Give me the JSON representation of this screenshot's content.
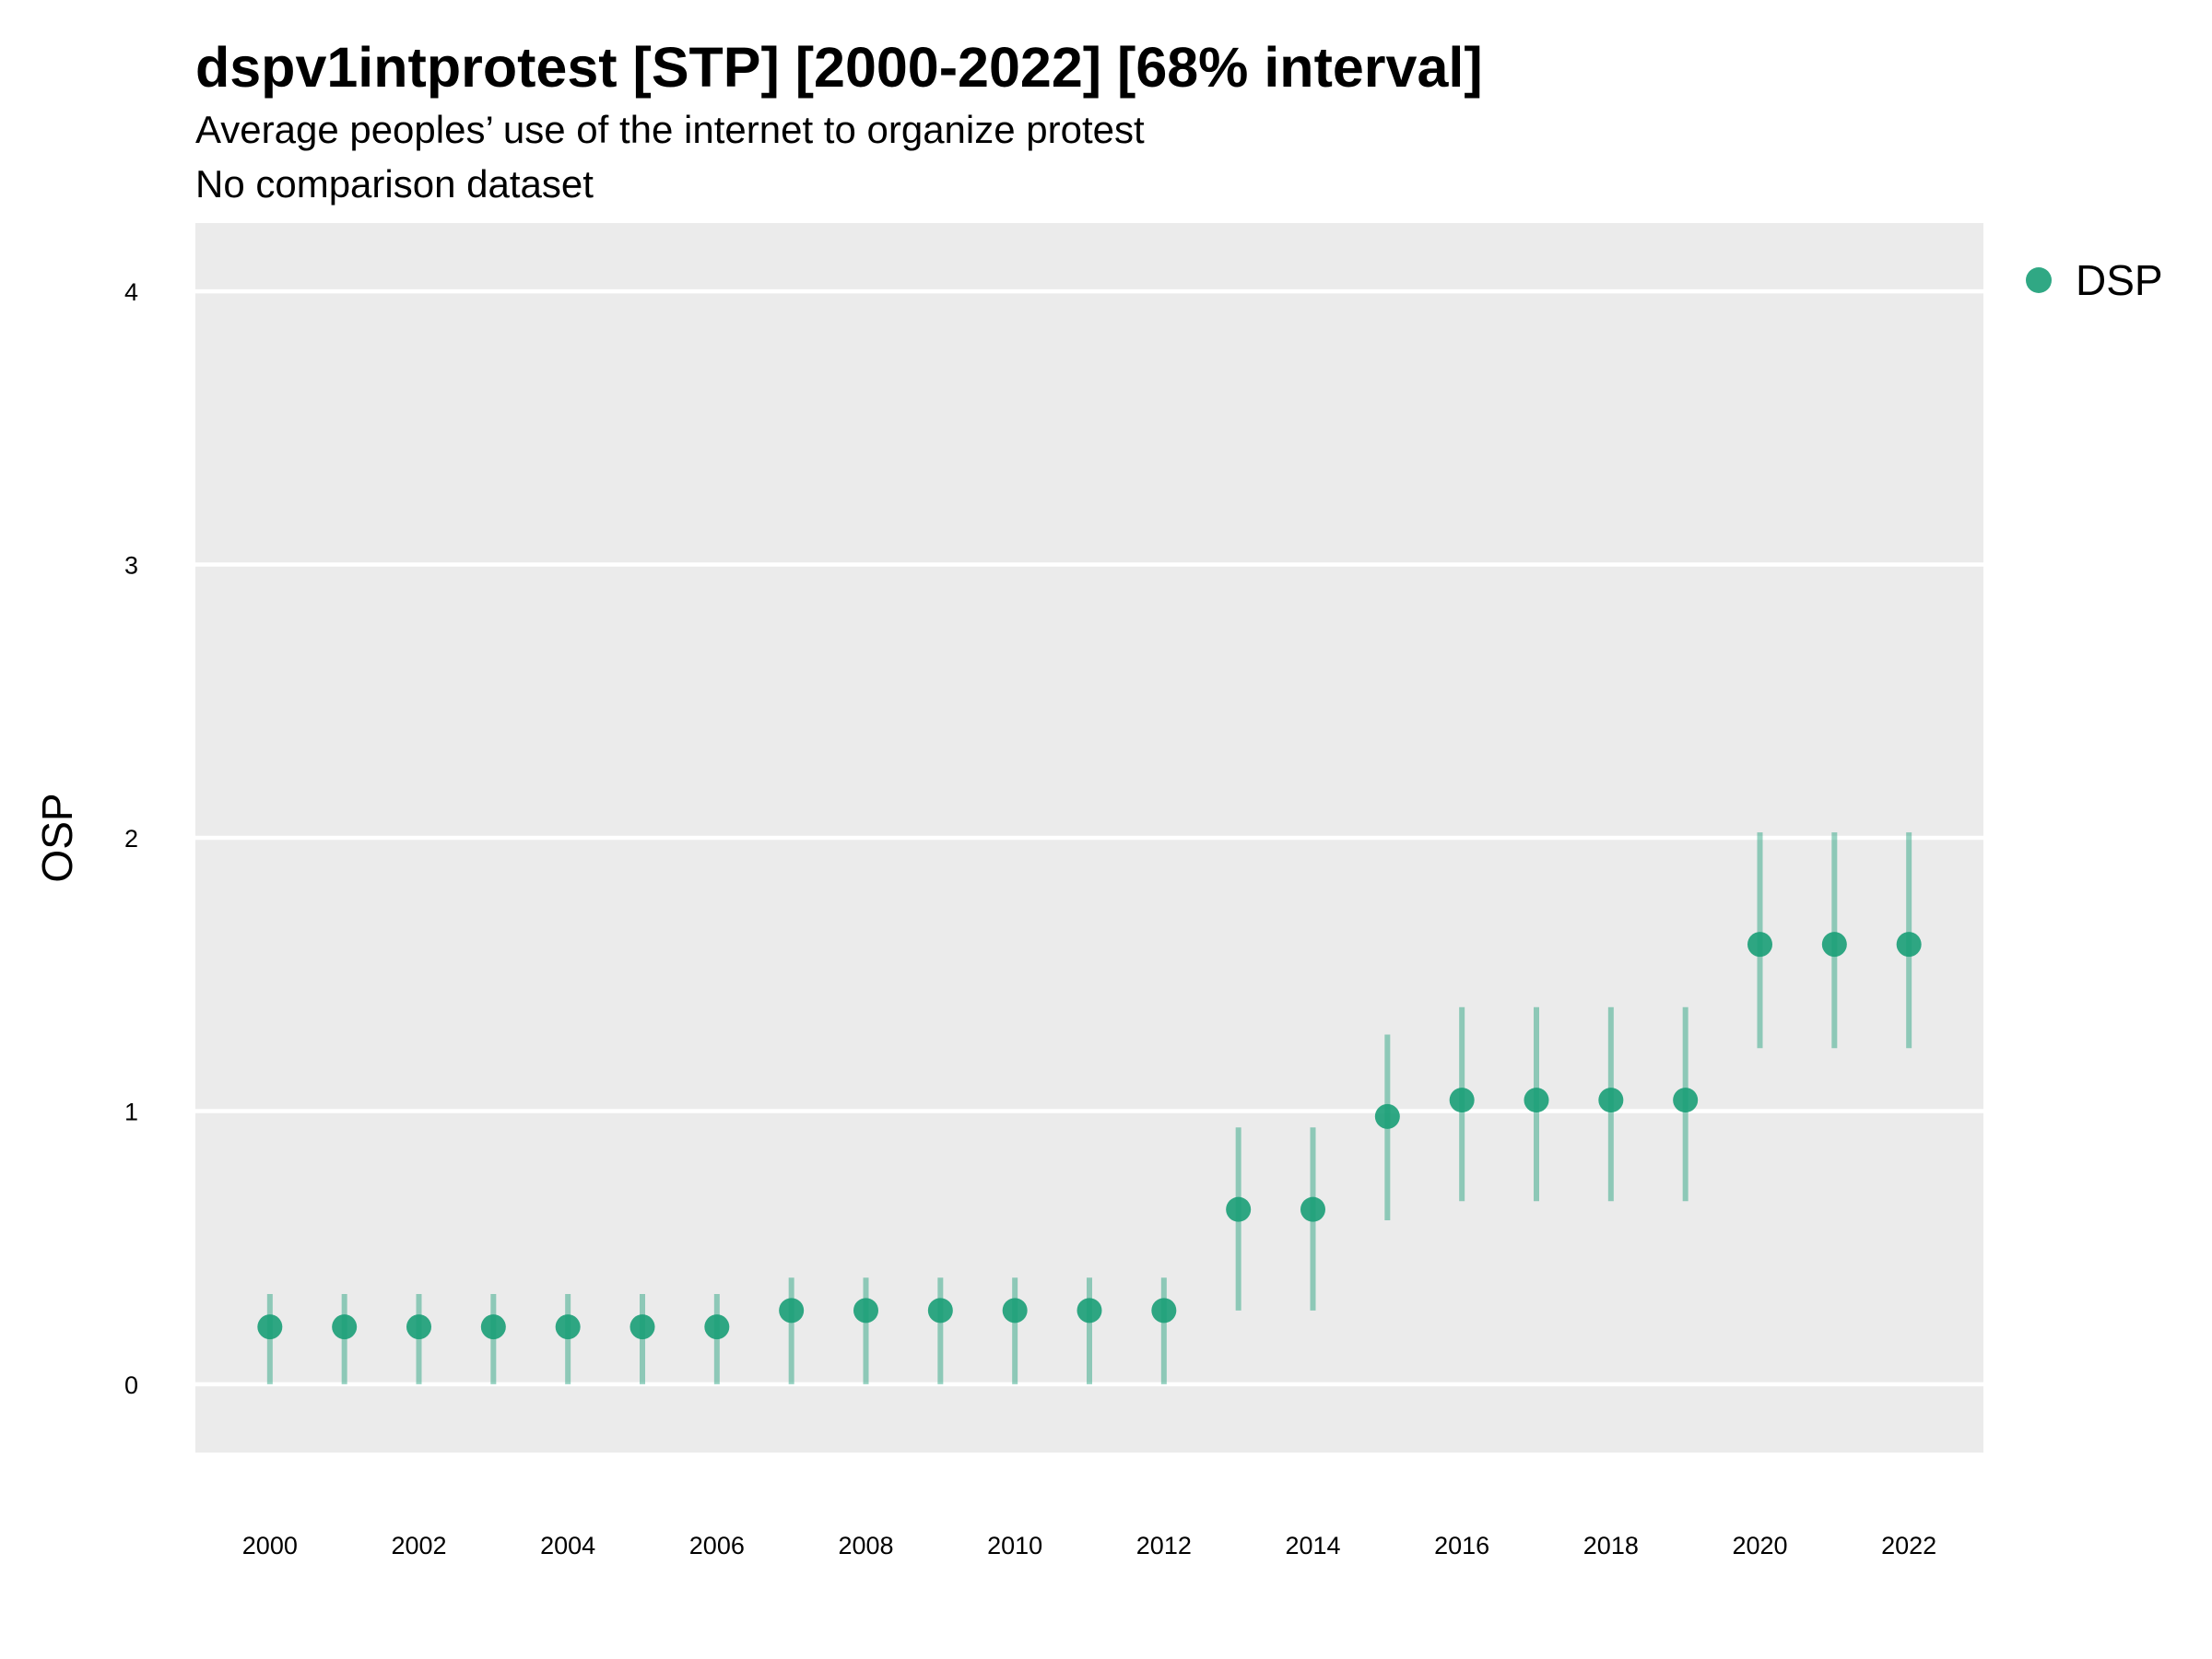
{
  "chart_data": {
    "type": "scatter",
    "title": "dspv1intprotest [STP] [2000-2022] [68% interval]",
    "subtitle": "Average peoples’ use of the internet to organize protest",
    "subtitle2": "No comparison dataset",
    "xlabel": "",
    "ylabel": "OSP",
    "ylim": [
      -0.25,
      4.25
    ],
    "xlim": [
      1999,
      2023
    ],
    "yticks": [
      0,
      1,
      2,
      3,
      4
    ],
    "xticks": [
      2000,
      2002,
      2004,
      2006,
      2008,
      2010,
      2012,
      2014,
      2016,
      2018,
      2020,
      2022
    ],
    "grid": true,
    "legend_position": "right",
    "color": "#1a9e77",
    "series": [
      {
        "name": "DSP",
        "points": [
          {
            "x": 2000,
            "y": 0.21,
            "low": 0.0,
            "high": 0.33
          },
          {
            "x": 2001,
            "y": 0.21,
            "low": 0.0,
            "high": 0.33
          },
          {
            "x": 2002,
            "y": 0.21,
            "low": 0.0,
            "high": 0.33
          },
          {
            "x": 2003,
            "y": 0.21,
            "low": 0.0,
            "high": 0.33
          },
          {
            "x": 2004,
            "y": 0.21,
            "low": 0.0,
            "high": 0.33
          },
          {
            "x": 2005,
            "y": 0.21,
            "low": 0.0,
            "high": 0.33
          },
          {
            "x": 2006,
            "y": 0.21,
            "low": 0.0,
            "high": 0.33
          },
          {
            "x": 2007,
            "y": 0.27,
            "low": 0.0,
            "high": 0.39
          },
          {
            "x": 2008,
            "y": 0.27,
            "low": 0.0,
            "high": 0.39
          },
          {
            "x": 2009,
            "y": 0.27,
            "low": 0.0,
            "high": 0.39
          },
          {
            "x": 2010,
            "y": 0.27,
            "low": 0.0,
            "high": 0.39
          },
          {
            "x": 2011,
            "y": 0.27,
            "low": 0.0,
            "high": 0.39
          },
          {
            "x": 2012,
            "y": 0.27,
            "low": 0.0,
            "high": 0.39
          },
          {
            "x": 2013,
            "y": 0.64,
            "low": 0.27,
            "high": 0.94
          },
          {
            "x": 2014,
            "y": 0.64,
            "low": 0.27,
            "high": 0.94
          },
          {
            "x": 2015,
            "y": 0.98,
            "low": 0.6,
            "high": 1.28
          },
          {
            "x": 2016,
            "y": 1.04,
            "low": 0.67,
            "high": 1.38
          },
          {
            "x": 2017,
            "y": 1.04,
            "low": 0.67,
            "high": 1.38
          },
          {
            "x": 2018,
            "y": 1.04,
            "low": 0.67,
            "high": 1.38
          },
          {
            "x": 2019,
            "y": 1.04,
            "low": 0.67,
            "high": 1.38
          },
          {
            "x": 2020,
            "y": 1.61,
            "low": 1.23,
            "high": 2.02
          },
          {
            "x": 2021,
            "y": 1.61,
            "low": 1.23,
            "high": 2.02
          },
          {
            "x": 2022,
            "y": 1.61,
            "low": 1.23,
            "high": 2.02
          }
        ]
      }
    ]
  }
}
